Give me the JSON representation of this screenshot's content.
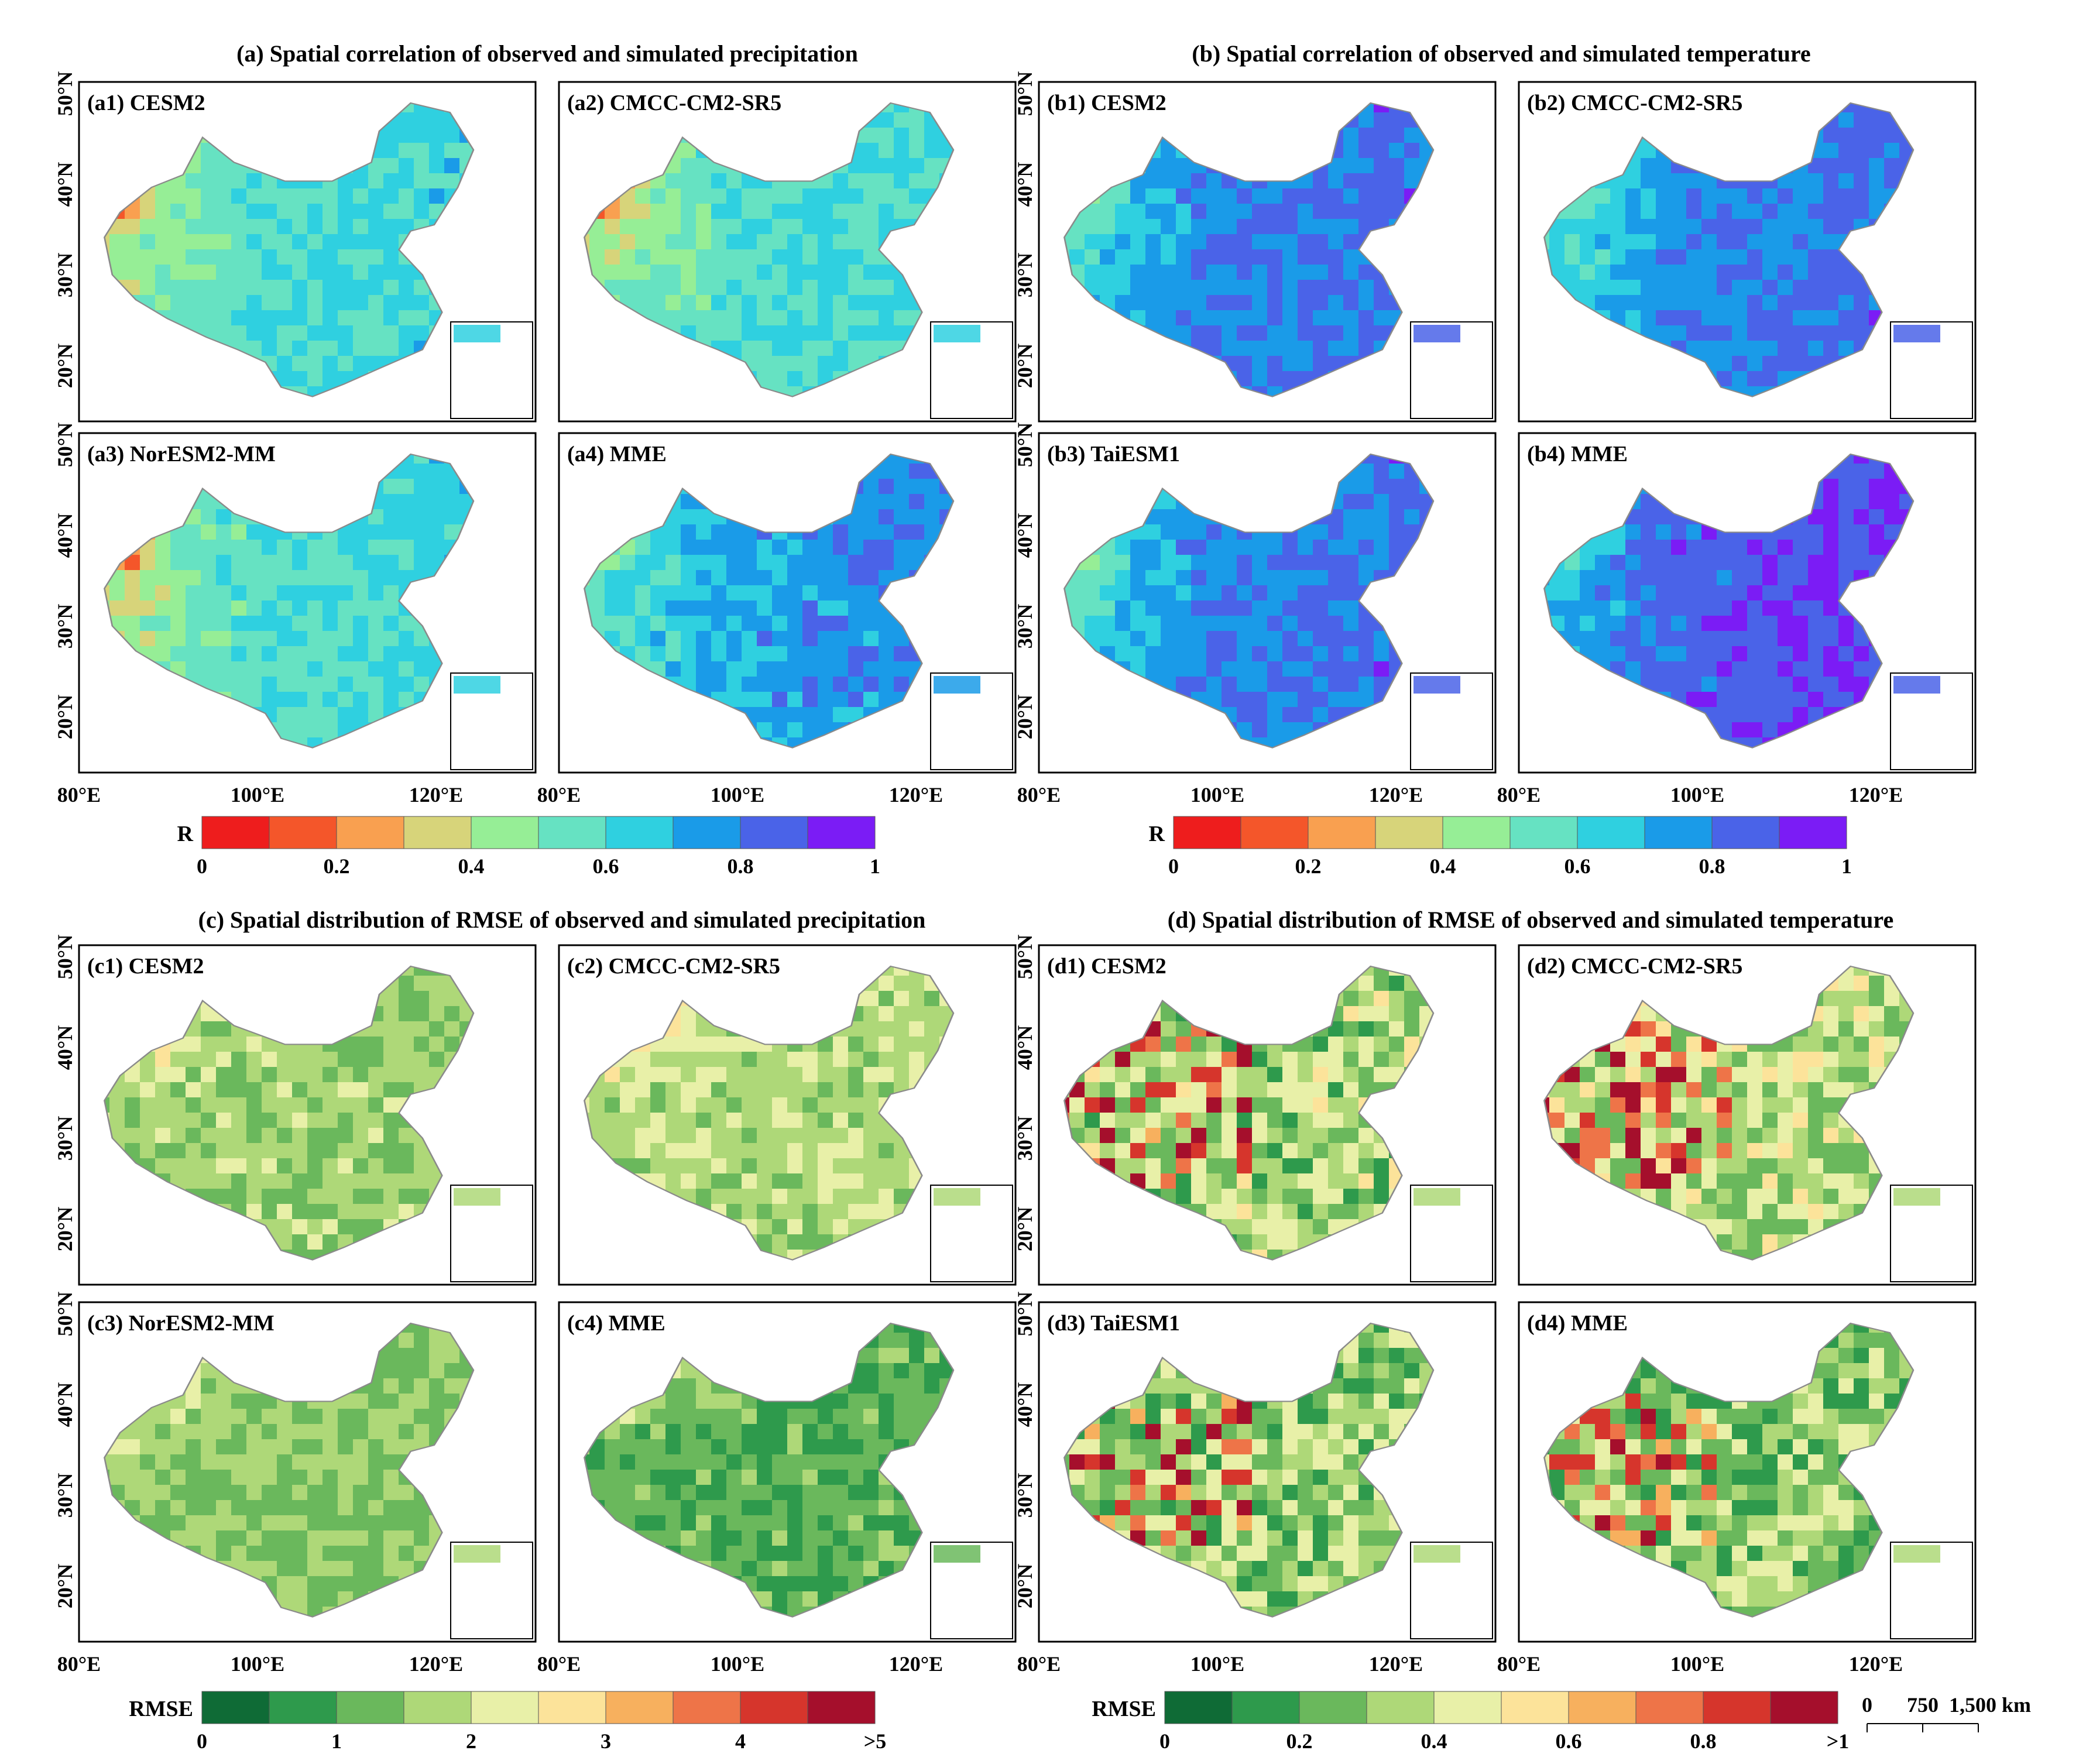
{
  "sections": {
    "a": {
      "title": "(a) Spatial correlation of observed and simulated precipitation"
    },
    "b": {
      "title": "(b) Spatial correlation of observed and simulated temperature"
    },
    "c": {
      "title": "(c) Spatial distribution of RMSE of observed and simulated precipitation"
    },
    "d": {
      "title": "(d) Spatial distribution of RMSE of observed and simulated temperature"
    }
  },
  "panels": [
    {
      "id": "a1",
      "label": "(a1) CESM2",
      "palette": "corr",
      "level": 0.6
    },
    {
      "id": "a2",
      "label": "(a2) CMCC-CM2-SR5",
      "palette": "corr",
      "level": 0.6
    },
    {
      "id": "a3",
      "label": "(a3) NorESM2-MM",
      "palette": "corr",
      "level": 0.6
    },
    {
      "id": "a4",
      "label": "(a4) MME",
      "palette": "corr",
      "level": 0.75
    },
    {
      "id": "b1",
      "label": "(b1) CESM2",
      "palette": "corr",
      "level": 0.8
    },
    {
      "id": "b2",
      "label": "(b2) CMCC-CM2-SR5",
      "palette": "corr",
      "level": 0.8
    },
    {
      "id": "b3",
      "label": "(b3) TaiESM1",
      "palette": "corr",
      "level": 0.8
    },
    {
      "id": "b4",
      "label": "(b4) MME",
      "palette": "corr",
      "level": 0.88
    },
    {
      "id": "c1",
      "label": "(c1) CESM2",
      "palette": "rmse_p",
      "level": 1.6
    },
    {
      "id": "c2",
      "label": "(c2) CMCC-CM2-SR5",
      "palette": "rmse_p",
      "level": 1.8
    },
    {
      "id": "c3",
      "label": "(c3) NorESM2-MM",
      "palette": "rmse_p",
      "level": 1.5
    },
    {
      "id": "c4",
      "label": "(c4) MME",
      "palette": "rmse_p",
      "level": 1.1
    },
    {
      "id": "d1",
      "label": "(d1) CESM2",
      "palette": "rmse_t",
      "level": 0.35
    },
    {
      "id": "d2",
      "label": "(d2) CMCC-CM2-SR5",
      "palette": "rmse_t",
      "level": 0.38
    },
    {
      "id": "d3",
      "label": "(d3) TaiESM1",
      "palette": "rmse_t",
      "level": 0.32
    },
    {
      "id": "d4",
      "label": "(d4) MME",
      "palette": "rmse_t",
      "level": 0.3
    }
  ],
  "axes": {
    "lat_labels": [
      "50°N",
      "40°N",
      "30°N",
      "20°N"
    ],
    "lon_labels": [
      "80°E",
      "100°E",
      "120°E"
    ]
  },
  "colorbars": {
    "corr": {
      "title": "R",
      "ticks": [
        "0",
        "0.2",
        "0.4",
        "0.6",
        "0.8",
        "1"
      ],
      "colors": [
        "#ee1d1d",
        "#f4562a",
        "#f9a050",
        "#d7d47a",
        "#96ee96",
        "#66e2c2",
        "#2fd0e0",
        "#1a9be8",
        "#4a63e8",
        "#7b1cf5"
      ]
    },
    "rmse_p": {
      "title": "RMSE",
      "ticks": [
        "0",
        "1",
        "2",
        "3",
        "4",
        ">5"
      ],
      "colors": [
        "#0f6b36",
        "#2e9a4c",
        "#6ab85c",
        "#aed878",
        "#e8f0a8",
        "#fce39a",
        "#f7b05e",
        "#ee7448",
        "#d6352c",
        "#a50f2c"
      ]
    },
    "rmse_t": {
      "title": "RMSE",
      "ticks": [
        "0",
        "0.2",
        "0.4",
        "0.6",
        "0.8",
        ">1"
      ],
      "colors": [
        "#0f6b36",
        "#2e9a4c",
        "#6ab85c",
        "#aed878",
        "#e8f0a8",
        "#fce39a",
        "#f7b05e",
        "#ee7448",
        "#d6352c",
        "#a50f2c"
      ]
    }
  },
  "scalebar": {
    "labels": [
      "0",
      "750",
      "1,500 km"
    ]
  }
}
